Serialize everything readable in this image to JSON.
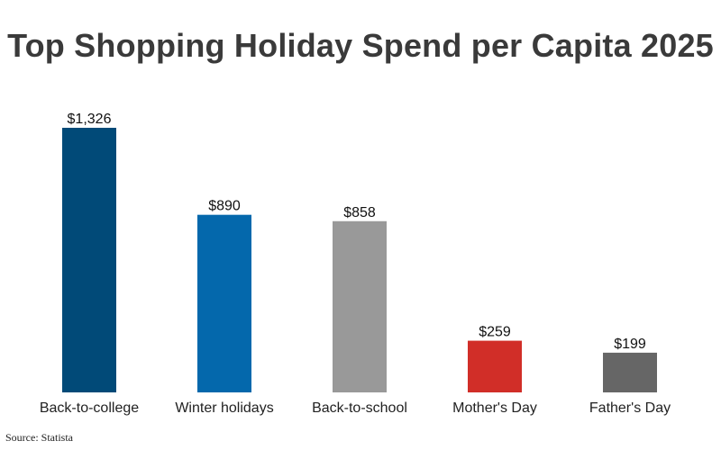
{
  "title": "Top Shopping Holiday Spend per Capita 2025",
  "source": "Source: Statista",
  "chart_data": {
    "type": "bar",
    "title": "Top Shopping Holiday Spend per Capita 2025",
    "xlabel": "",
    "ylabel": "",
    "ylim": [
      0,
      1326
    ],
    "grid": false,
    "categories": [
      "Back-to-college",
      "Winter holidays",
      "Back-to-school",
      "Mother's Day",
      "Father's Day"
    ],
    "values": [
      1326,
      890,
      858,
      259,
      199
    ],
    "value_labels": [
      "$1,326",
      "$890",
      "$858",
      "$259",
      "$199"
    ],
    "colors": [
      "#014a78",
      "#0468ac",
      "#999999",
      "#d12e28",
      "#666666"
    ]
  }
}
